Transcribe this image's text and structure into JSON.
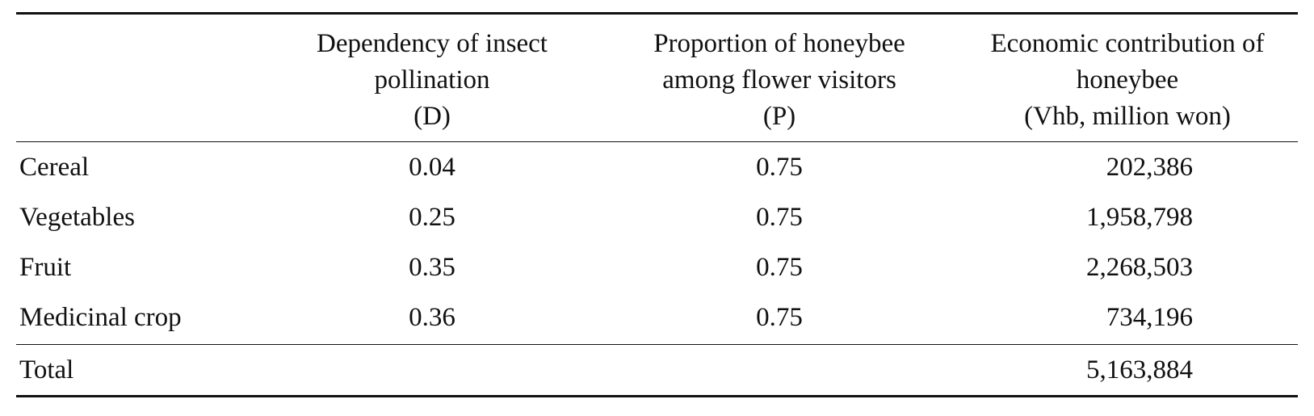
{
  "table": {
    "headers": {
      "empty": "",
      "col1": [
        "Dependency of insect",
        "pollination",
        "(D)"
      ],
      "col2": [
        "Proportion of honeybee",
        "among flower visitors",
        "(P)"
      ],
      "col3": [
        "Economic contribution of",
        "honeybee",
        "(Vhb, million won)"
      ]
    },
    "rows": [
      {
        "label": "Cereal",
        "d": "0.04",
        "p": "0.75",
        "vhb": "202,386"
      },
      {
        "label": "Vegetables",
        "d": "0.25",
        "p": "0.75",
        "vhb": "1,958,798"
      },
      {
        "label": "Fruit",
        "d": "0.35",
        "p": "0.75",
        "vhb": "2,268,503"
      },
      {
        "label": "Medicinal crop",
        "d": "0.36",
        "p": "0.75",
        "vhb": "734,196"
      }
    ],
    "total": {
      "label": "Total",
      "d": "",
      "p": "",
      "vhb": "5,163,884"
    }
  }
}
